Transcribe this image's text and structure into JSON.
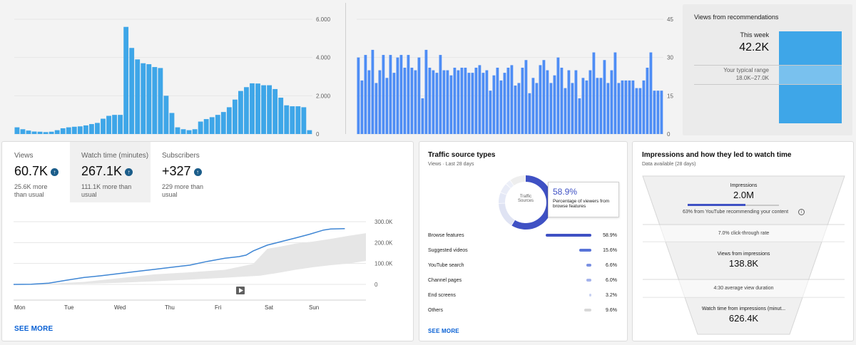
{
  "top_left_chart": {
    "type": "bar",
    "y_ticks": [
      "6.000",
      "4.000",
      "2.000",
      "0"
    ],
    "ylim": [
      0,
      6000
    ],
    "values": [
      350,
      250,
      180,
      130,
      120,
      100,
      120,
      200,
      300,
      350,
      380,
      400,
      450,
      520,
      580,
      800,
      950,
      1000,
      1000,
      5600,
      4500,
      3900,
      3700,
      3650,
      3500,
      3450,
      2000,
      1100,
      350,
      250,
      200,
      250,
      650,
      780,
      880,
      1000,
      1150,
      1400,
      1800,
      2250,
      2450,
      2650,
      2640,
      2550,
      2550,
      2350,
      1900,
      1500,
      1450,
      1450,
      1400,
      200
    ],
    "color": "#3ea6e8"
  },
  "top_mid_chart": {
    "type": "bar",
    "y_ticks": [
      "45",
      "30",
      "15",
      "0"
    ],
    "ylim": [
      0,
      45
    ],
    "values": [
      30,
      21,
      31,
      25,
      33,
      20,
      25,
      31,
      22,
      31,
      24,
      30,
      31,
      26,
      31,
      26,
      25,
      30,
      14,
      33,
      26,
      25,
      24,
      31,
      25,
      25,
      23,
      26,
      25,
      26,
      26,
      24,
      24,
      26,
      27,
      24,
      25,
      17,
      23,
      26,
      21,
      24,
      26,
      27,
      19,
      20,
      26,
      29,
      16,
      22,
      20,
      27,
      29,
      25,
      20,
      23,
      30,
      26,
      18,
      25,
      20,
      25,
      14,
      22,
      21,
      25,
      32,
      22,
      22,
      29,
      20,
      25,
      32,
      20,
      21,
      21,
      21,
      21,
      18,
      18,
      21,
      26,
      32,
      17,
      17,
      17
    ],
    "color": "#4e8df5"
  },
  "recommendations": {
    "title": "Views from recommendations",
    "this_week_label": "This week",
    "this_week_value": "42.2K",
    "typical_label": "Your typical range",
    "typical_range": "18.0K–27.0K",
    "color": "#3ea6e8"
  },
  "metrics": {
    "views": {
      "label": "Views",
      "value": "60.7K",
      "sub1": "25.6K more",
      "sub2": "than usual"
    },
    "watch": {
      "label": "Watch time (minutes)",
      "value": "267.1K",
      "sub1": "111.1K more than",
      "sub2": "usual"
    },
    "subs": {
      "label": "Subscribers",
      "value": "+327",
      "sub1": "229 more than",
      "sub2": "usual"
    }
  },
  "watch_chart": {
    "type": "line",
    "y_ticks": [
      "300.0K",
      "200.0K",
      "100.0K",
      "0"
    ],
    "x_labels": [
      "Mon",
      "Tue",
      "Wed",
      "Thu",
      "Fri",
      "Sat",
      "Sun"
    ],
    "ylim": [
      0,
      300000
    ],
    "line_color": "#3f86d4",
    "band_color": "#e6e6e6"
  },
  "see_more_1": "SEE MORE",
  "traffic": {
    "title": "Traffic source types",
    "subtitle": "Views · Last 28 days",
    "donut_label1": "Traffic",
    "donut_label2": "Sources",
    "highlight_pct": "58.9%",
    "highlight_desc1": "Percentage of viewers from",
    "highlight_desc2": "browse features",
    "rows": [
      {
        "label": "Browse features",
        "pct": "58.9%",
        "value": 58.9,
        "color": "#3f51c4"
      },
      {
        "label": "Suggested videos",
        "pct": "15.6%",
        "value": 15.6,
        "color": "#5873d8"
      },
      {
        "label": "YouTube search",
        "pct": "6.6%",
        "value": 6.6,
        "color": "#7a90e2"
      },
      {
        "label": "Channel pages",
        "pct": "6.0%",
        "value": 6.0,
        "color": "#a4b3ec"
      },
      {
        "label": "End screens",
        "pct": "3.2%",
        "value": 3.2,
        "color": "#c8d1f2"
      },
      {
        "label": "Others",
        "pct": "9.6%",
        "value": 9.6,
        "color": "#d8d8d8"
      }
    ],
    "see_more": "SEE MORE"
  },
  "impressions": {
    "title": "Impressions and how they led to watch time",
    "subtitle": "Data available  (28 days)",
    "impressions_label": "Impressions",
    "impressions_value": "2.0M",
    "impressions_sub": "63% from YouTube recommending your content",
    "ctr": "7.0% click-through rate",
    "views_label": "Views from impressions",
    "views_value": "138.8K",
    "avd": "4:30 average view duration",
    "watch_label": "Watch time from impressions (minut...",
    "watch_value": "626.4K"
  }
}
